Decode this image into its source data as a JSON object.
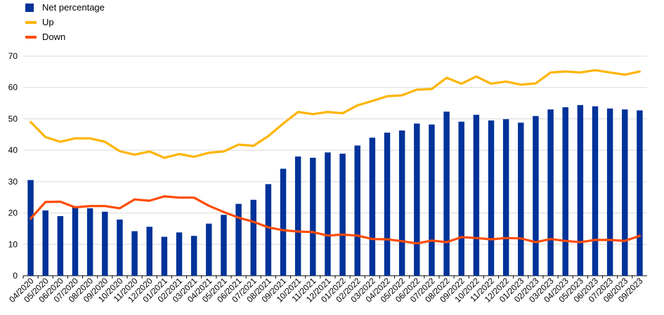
{
  "chart_data": {
    "type": "bar",
    "categories": [
      "04/2020",
      "05/2020",
      "06/2020",
      "07/2020",
      "08/2020",
      "09/2020",
      "10/2020",
      "11/2020",
      "12/2020",
      "01/2021",
      "02/2021",
      "03/2021",
      "04/2021",
      "05/2021",
      "06/2021",
      "07/2021",
      "08/2021",
      "09/2021",
      "10/2021",
      "11/2021",
      "12/2021",
      "01/2022",
      "02/2022",
      "03/2022",
      "04/2022",
      "05/2022",
      "06/2022",
      "07/2022",
      "08/2022",
      "09/2022",
      "10/2022",
      "11/2022",
      "12/2022",
      "01/2023",
      "02/2023",
      "03/2023",
      "04/2023",
      "05/2023",
      "06/2023",
      "07/2023",
      "08/2023",
      "09/2023"
    ],
    "series": [
      {
        "name": "Net percentage",
        "kind": "bar",
        "color": "#003299",
        "values": [
          30.5,
          20.8,
          19,
          21.8,
          21.5,
          20.4,
          17.9,
          14.2,
          15.6,
          12.4,
          13.8,
          12.7,
          16.6,
          19.4,
          22.9,
          24.2,
          29.2,
          34.1,
          38,
          37.6,
          39.3,
          38.9,
          41.5,
          44,
          45.6,
          46.3,
          48.5,
          48.2,
          52.3,
          49.1,
          51.3,
          49.5,
          49.9,
          48.8,
          50.9,
          53,
          53.7,
          54.4,
          54,
          53.3,
          53,
          52.7
        ]
      },
      {
        "name": "Up",
        "kind": "line",
        "color": "#FFB400",
        "values": [
          49,
          44.2,
          42.7,
          43.8,
          43.8,
          42.7,
          39.7,
          38.6,
          39.6,
          37.6,
          38.8,
          37.9,
          39.2,
          39.6,
          41.8,
          41.4,
          44.5,
          48.5,
          52.2,
          51.5,
          52.2,
          51.8,
          54.3,
          55.7,
          57.2,
          57.5,
          59.3,
          59.5,
          63.1,
          61.2,
          63.5,
          61.2,
          61.9,
          60.9,
          61.3,
          64.8,
          65.1,
          64.8,
          65.5,
          64.8,
          64.1,
          65.1
        ]
      },
      {
        "name": "Down",
        "kind": "line",
        "color": "#FF4B00",
        "values": [
          18.2,
          23.5,
          23.6,
          21.8,
          22.2,
          22.2,
          21.5,
          24.3,
          23.9,
          25.3,
          24.9,
          24.9,
          22.3,
          20.3,
          18.5,
          17.2,
          15.4,
          14.5,
          14.1,
          13.9,
          12.8,
          13.1,
          12.8,
          11.7,
          11.6,
          11,
          10.3,
          11.2,
          10.7,
          12.3,
          12,
          11.6,
          12,
          11.9,
          10.7,
          11.7,
          11.1,
          10.7,
          11.4,
          11.4,
          11.1,
          12.7
        ]
      }
    ],
    "ylim": [
      0,
      70
    ],
    "yticks": [
      0,
      10,
      20,
      30,
      40,
      50,
      60,
      70
    ],
    "grid": true,
    "legend_position": "top-left"
  }
}
